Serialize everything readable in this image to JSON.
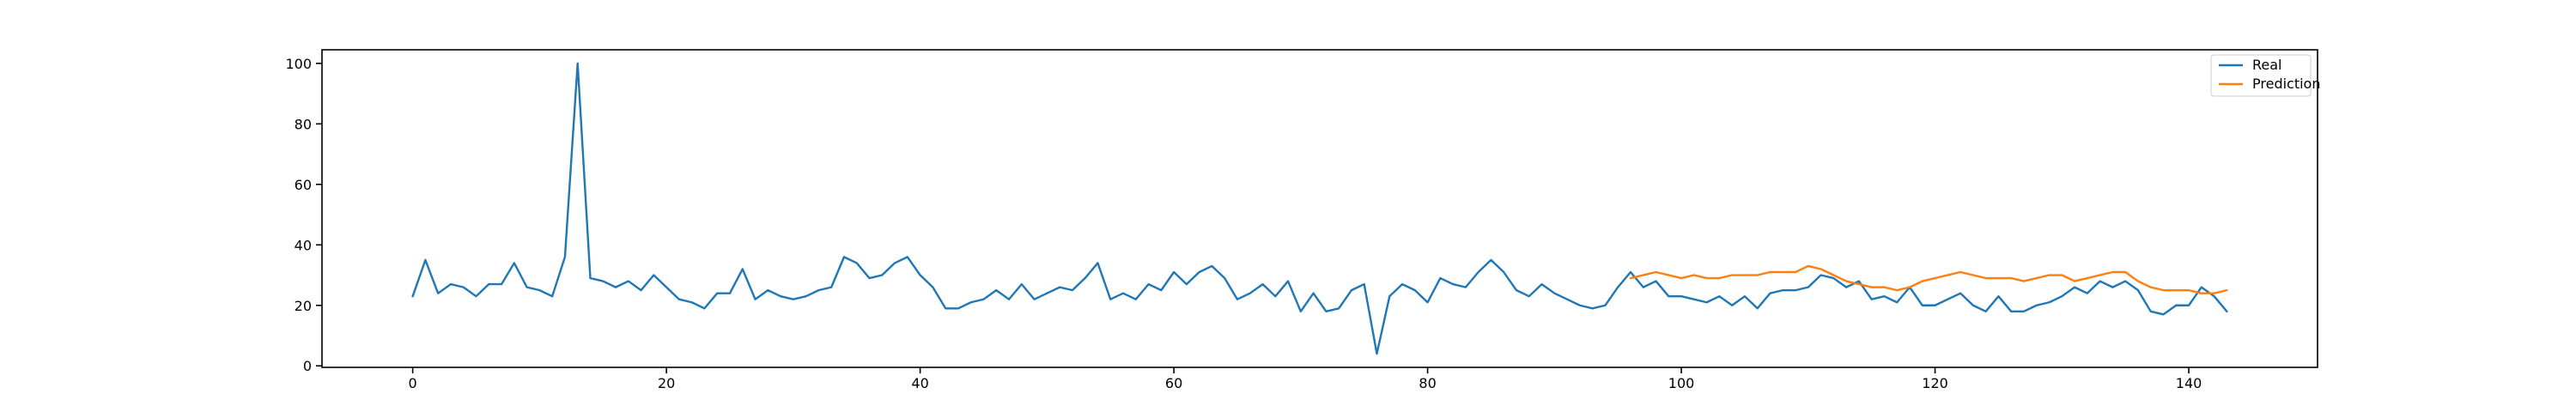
{
  "chart_data": {
    "type": "line",
    "title": "",
    "xlabel": "",
    "ylabel": "",
    "xlim": [
      -7.15,
      150.15
    ],
    "ylim": [
      -0.5,
      104.5
    ],
    "xticks": [
      0,
      20,
      40,
      60,
      80,
      100,
      120,
      140
    ],
    "yticks": [
      0,
      20,
      40,
      60,
      80,
      100
    ],
    "grid": false,
    "legend_position": "top-right",
    "series": [
      {
        "name": "Real",
        "color": "#1f77b4",
        "x_start": 0,
        "values": [
          23,
          35,
          24,
          27,
          26,
          23,
          27,
          27,
          34,
          26,
          25,
          23,
          36,
          100,
          29,
          28,
          26,
          28,
          25,
          30,
          26,
          22,
          21,
          19,
          24,
          24,
          32,
          22,
          25,
          23,
          22,
          23,
          25,
          26,
          36,
          34,
          29,
          30,
          34,
          36,
          30,
          26,
          19,
          19,
          21,
          22,
          25,
          22,
          27,
          22,
          24,
          26,
          25,
          29,
          34,
          22,
          24,
          22,
          27,
          25,
          31,
          27,
          31,
          33,
          29,
          22,
          24,
          27,
          23,
          28,
          18,
          24,
          18,
          19,
          25,
          27,
          4,
          23,
          27,
          25,
          21,
          29,
          27,
          26,
          31,
          35,
          31,
          25,
          23,
          27,
          24,
          22,
          20,
          19,
          20,
          26,
          31,
          26,
          28,
          23,
          23,
          22,
          21,
          23,
          20,
          23,
          19,
          24,
          25,
          25,
          26,
          30,
          29,
          26,
          28,
          22,
          23,
          21,
          26,
          20,
          20,
          22,
          24,
          20,
          18,
          23,
          18,
          18,
          20,
          21,
          23,
          26,
          24,
          28,
          26,
          28,
          25,
          18,
          17,
          20,
          20,
          26,
          23,
          18
        ]
      },
      {
        "name": "Prediction",
        "color": "#ff7f0e",
        "x_start": 96,
        "values": [
          29,
          30,
          31,
          30,
          29,
          30,
          29,
          29,
          30,
          30,
          30,
          31,
          31,
          31,
          33,
          32,
          30,
          28,
          27,
          26,
          26,
          25,
          26,
          28,
          29,
          30,
          31,
          30,
          29,
          29,
          29,
          28,
          29,
          30,
          30,
          28,
          29,
          30,
          31,
          31,
          28,
          26,
          25,
          25,
          25,
          24,
          24,
          25
        ]
      }
    ]
  }
}
